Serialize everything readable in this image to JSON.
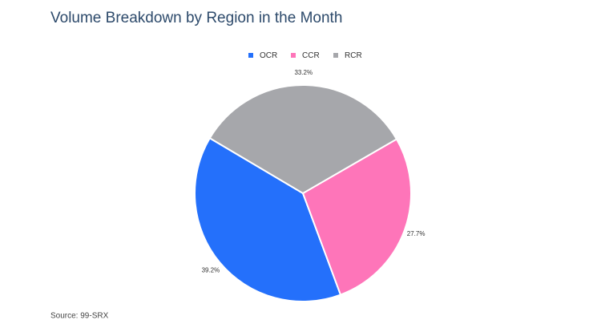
{
  "chart_data": {
    "type": "pie",
    "title": "Volume Breakdown by Region in the Month",
    "source": "Source: 99-SRX",
    "categories": [
      "OCR",
      "CCR",
      "RCR"
    ],
    "values": [
      39.2,
      27.7,
      33.2
    ],
    "value_labels": [
      "39.2%",
      "27.7%",
      "33.2%"
    ],
    "colors": [
      "#2470fb",
      "#fe75b9",
      "#a6a7ab"
    ],
    "legend": "top"
  }
}
